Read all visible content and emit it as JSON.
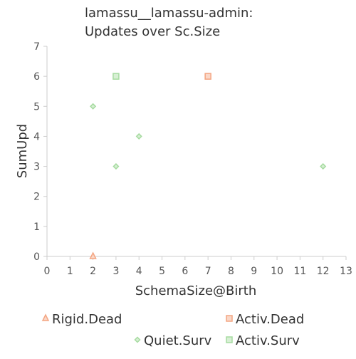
{
  "chart_data": {
    "type": "scatter",
    "title_lines": [
      "lamassu__lamassu-admin:",
      "Updates over Sc.Size"
    ],
    "xlabel": "SchemaSize@Birth",
    "ylabel": "SumUpd",
    "xlim": [
      0,
      13
    ],
    "ylim": [
      0,
      7
    ],
    "x_ticks": [
      0,
      1,
      2,
      3,
      4,
      5,
      6,
      7,
      8,
      9,
      10,
      11,
      12,
      13
    ],
    "y_ticks": [
      0,
      1,
      2,
      3,
      4,
      5,
      6,
      7
    ],
    "grid": false,
    "series": [
      {
        "name": "Rigid.Dead",
        "marker": "triangle",
        "color": "#f4a582",
        "points": [
          {
            "x": 2,
            "y": 0
          }
        ]
      },
      {
        "name": "Activ.Dead",
        "marker": "square",
        "color": "#f4a582",
        "points": [
          {
            "x": 7,
            "y": 6
          }
        ]
      },
      {
        "name": "Quiet.Surv",
        "marker": "diamond",
        "color": "#a6dba0",
        "points": [
          {
            "x": 2,
            "y": 5
          },
          {
            "x": 3,
            "y": 3
          },
          {
            "x": 4,
            "y": 4
          },
          {
            "x": 12,
            "y": 3
          }
        ]
      },
      {
        "name": "Activ.Surv",
        "marker": "square",
        "color": "#a6dba0",
        "points": [
          {
            "x": 3,
            "y": 6
          }
        ]
      }
    ]
  }
}
